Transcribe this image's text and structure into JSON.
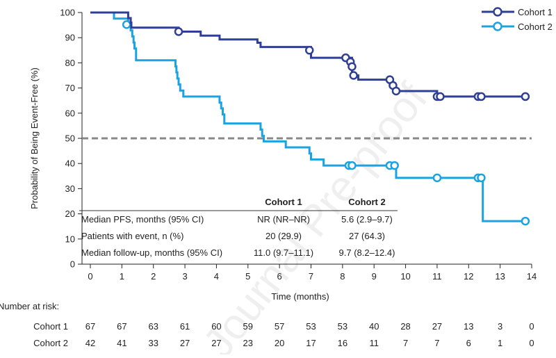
{
  "chart_data": {
    "type": "line",
    "subtype": "kaplan-meier",
    "xlabel": "Time (months)",
    "ylabel": "Probability of Being Event-Free (%)",
    "xlim": [
      0,
      14
    ],
    "ylim": [
      0,
      100
    ],
    "xticks": [
      "0",
      "1",
      "2",
      "3",
      "4",
      "5",
      "6",
      "7",
      "8",
      "9",
      "10",
      "11",
      "12",
      "13",
      "14"
    ],
    "yticks": [
      "0",
      "10",
      "20",
      "30",
      "40",
      "50",
      "60",
      "70",
      "80",
      "90",
      "100"
    ],
    "reference_line": {
      "y": 50,
      "style": "dashed",
      "color": "#888888"
    },
    "legend_position": "top-right",
    "series": [
      {
        "name": "Cohort 1",
        "color": "#2e3f95",
        "steps": [
          [
            0,
            100
          ],
          [
            1.2,
            97.8
          ],
          [
            1.28,
            96
          ],
          [
            1.3,
            94
          ],
          [
            2.8,
            92.4
          ],
          [
            3.5,
            90.8
          ],
          [
            4.1,
            89.3
          ],
          [
            5.3,
            88
          ],
          [
            5.4,
            86.3
          ],
          [
            7.0,
            82
          ],
          [
            8.3,
            75
          ],
          [
            8.5,
            73.3
          ],
          [
            9.6,
            71
          ],
          [
            9.7,
            68.8
          ],
          [
            11.0,
            66.6
          ],
          [
            13.8,
            66.6
          ]
        ],
        "censored": [
          [
            2.8,
            92.4
          ],
          [
            6.95,
            85
          ],
          [
            8.1,
            82
          ],
          [
            8.25,
            80.4
          ],
          [
            8.3,
            78.5
          ],
          [
            8.35,
            75
          ],
          [
            9.5,
            73.3
          ],
          [
            9.6,
            71
          ],
          [
            9.7,
            68.8
          ],
          [
            11.0,
            66.6
          ],
          [
            11.1,
            66.6
          ],
          [
            12.3,
            66.6
          ],
          [
            12.4,
            66.6
          ],
          [
            13.8,
            66.6
          ]
        ]
      },
      {
        "name": "Cohort 2",
        "color": "#1aa3e0",
        "steps": [
          [
            0,
            100
          ],
          [
            0.75,
            97.6
          ],
          [
            1.2,
            95.2
          ],
          [
            1.28,
            92.9
          ],
          [
            1.33,
            90.5
          ],
          [
            1.37,
            88.1
          ],
          [
            1.4,
            85.7
          ],
          [
            1.45,
            81
          ],
          [
            2.7,
            78.6
          ],
          [
            2.73,
            76.2
          ],
          [
            2.76,
            73.8
          ],
          [
            2.8,
            71.4
          ],
          [
            2.85,
            69
          ],
          [
            2.95,
            66.6
          ],
          [
            4.1,
            64.2
          ],
          [
            4.15,
            61.9
          ],
          [
            4.2,
            59.5
          ],
          [
            4.25,
            55.9
          ],
          [
            5.4,
            53.5
          ],
          [
            5.45,
            51
          ],
          [
            5.5,
            48.8
          ],
          [
            6.2,
            46.4
          ],
          [
            6.95,
            44
          ],
          [
            7.0,
            41.6
          ],
          [
            7.4,
            39.2
          ],
          [
            9.7,
            34.3
          ],
          [
            12.45,
            17.1
          ],
          [
            13.8,
            17.1
          ]
        ],
        "censored": [
          [
            1.15,
            95.2
          ],
          [
            8.2,
            39.2
          ],
          [
            8.3,
            39.2
          ],
          [
            9.5,
            39.2
          ],
          [
            9.65,
            39.2
          ],
          [
            11.0,
            34.3
          ],
          [
            12.3,
            34.3
          ],
          [
            12.4,
            34.3
          ],
          [
            13.8,
            17.1
          ]
        ]
      }
    ],
    "legend": [
      "Cohort 1",
      "Cohort 2"
    ]
  },
  "summary_table": {
    "headers": [
      "",
      "Cohort 1",
      "Cohort 2"
    ],
    "rows": [
      [
        "Median PFS, months (95% CI)",
        "NR (NR–NR)",
        "5.6 (2.9–9.7)"
      ],
      [
        "Patients with event, n (%)",
        "20 (29.9)",
        "27 (64.3)"
      ],
      [
        "Median follow-up, months (95% CI)",
        "11.0 (9.7–11.1)",
        "9.7 (8.2–12.4)"
      ]
    ]
  },
  "risk_table": {
    "title": "Number at risk:",
    "rows": [
      {
        "label": "Cohort 1",
        "values": [
          "67",
          "67",
          "63",
          "61",
          "60",
          "59",
          "57",
          "53",
          "53",
          "40",
          "28",
          "27",
          "13",
          "3",
          "0"
        ]
      },
      {
        "label": "Cohort 2",
        "values": [
          "42",
          "41",
          "33",
          "27",
          "27",
          "23",
          "20",
          "17",
          "16",
          "11",
          "7",
          "7",
          "6",
          "1",
          "0"
        ]
      }
    ]
  },
  "watermark": "Journal Pre-proof"
}
